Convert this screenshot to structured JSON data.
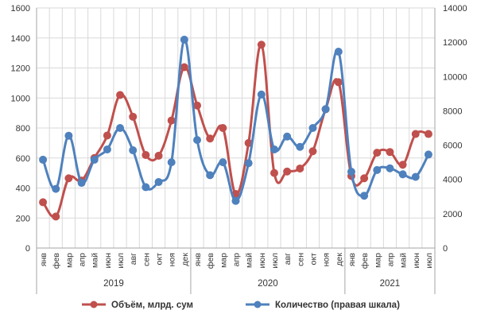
{
  "chart_data": {
    "type": "line",
    "categories": [
      "янв",
      "фев",
      "мар",
      "апр",
      "май",
      "июн",
      "июл",
      "авг",
      "сен",
      "окт",
      "ноя",
      "дек",
      "янв",
      "фев",
      "мар",
      "апр",
      "май",
      "июн",
      "июл",
      "авг",
      "сен",
      "окт",
      "ноя",
      "дек",
      "янв",
      "фев",
      "мар",
      "апр",
      "май",
      "июн",
      "июл"
    ],
    "years": [
      {
        "label": "2019",
        "start": 0,
        "end": 11
      },
      {
        "label": "2020",
        "start": 12,
        "end": 23
      },
      {
        "label": "2021",
        "start": 24,
        "end": 30
      }
    ],
    "series": [
      {
        "name": "Объём, млрд. сум",
        "axis": "left",
        "color": "#c0504d",
        "values": [
          305,
          210,
          465,
          450,
          600,
          750,
          1020,
          875,
          620,
          615,
          850,
          1205,
          950,
          730,
          800,
          360,
          700,
          1355,
          500,
          510,
          530,
          645,
          925,
          1105,
          480,
          465,
          635,
          640,
          555,
          760,
          760
        ]
      },
      {
        "name": "Количество (правая шкала)",
        "axis": "right",
        "color": "#4f81bd",
        "values": [
          5150,
          3450,
          6550,
          3800,
          5150,
          5750,
          7000,
          5700,
          3550,
          3850,
          5000,
          12150,
          6300,
          4250,
          5000,
          2750,
          4950,
          8950,
          5750,
          6500,
          5900,
          7000,
          8100,
          11450,
          4450,
          3050,
          4550,
          4650,
          4300,
          4150,
          5450
        ]
      }
    ],
    "left_axis": {
      "min": 0,
      "max": 1600,
      "step": 200
    },
    "right_axis": {
      "min": 0,
      "max": 14000,
      "step": 2000
    },
    "grid": true,
    "legend_position": "bottom"
  }
}
